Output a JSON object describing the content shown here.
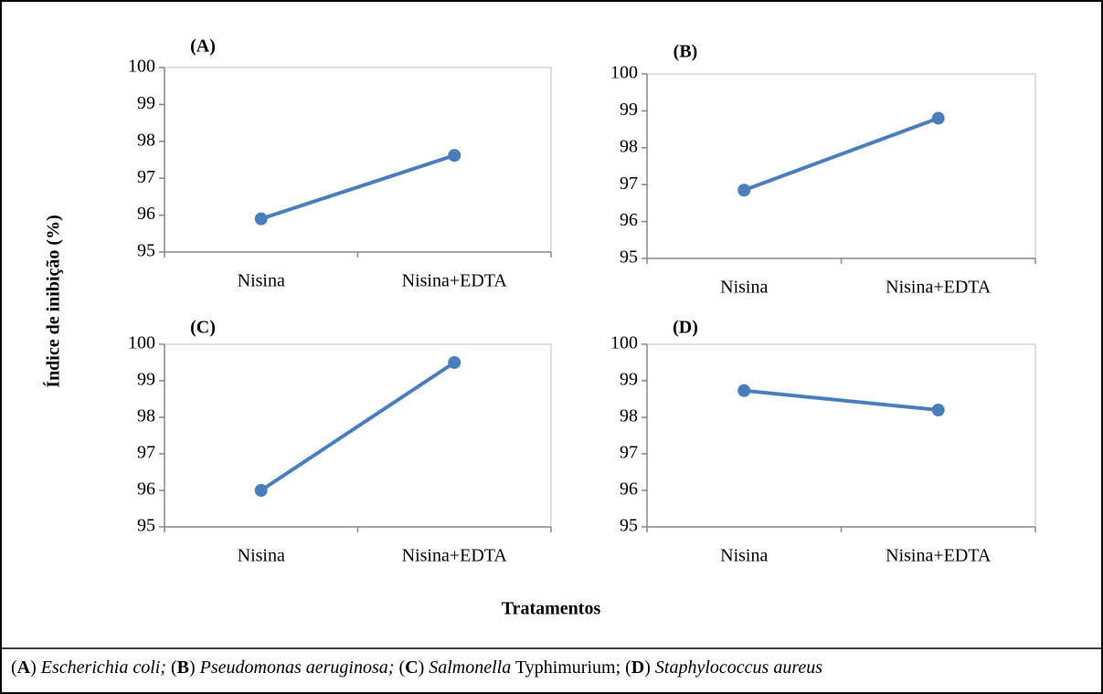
{
  "y_axis_label": "Índice de inibição (%)",
  "x_axis_label": "Tratamentos",
  "caption": [
    "(",
    "A",
    ") ",
    "Escherichia coli;",
    " (",
    "B",
    ") ",
    "Pseudomonas aeruginosa;",
    " (",
    "C",
    ") ",
    "Salmonella",
    " Typhimurium; (",
    "D",
    ") ",
    "Staphylococcus aureus"
  ],
  "chart_data": [
    {
      "type": "line",
      "title": "(A)",
      "categories": [
        "Nisina",
        "Nisina+EDTA"
      ],
      "values": [
        95.9,
        97.62
      ],
      "color": "#4a7ebb",
      "ylim": [
        95,
        100
      ],
      "yticks": [
        95,
        96,
        97,
        98,
        99,
        100
      ]
    },
    {
      "type": "line",
      "title": "(B)",
      "categories": [
        "Nisina",
        "Nisina+EDTA"
      ],
      "values": [
        96.85,
        98.8
      ],
      "color": "#4a7ebb",
      "ylim": [
        95,
        100
      ],
      "yticks": [
        95,
        96,
        97,
        98,
        99,
        100
      ]
    },
    {
      "type": "line",
      "title": "(C)",
      "categories": [
        "Nisina",
        "Nisina+EDTA"
      ],
      "values": [
        96.0,
        99.5
      ],
      "color": "#4a7ebb",
      "ylim": [
        95,
        100
      ],
      "yticks": [
        95,
        96,
        97,
        98,
        99,
        100
      ]
    },
    {
      "type": "line",
      "title": "(D)",
      "categories": [
        "Nisina",
        "Nisina+EDTA"
      ],
      "values": [
        98.73,
        98.2
      ],
      "color": "#4a7ebb",
      "ylim": [
        95,
        100
      ],
      "yticks": [
        95,
        96,
        97,
        98,
        99,
        100
      ]
    }
  ]
}
